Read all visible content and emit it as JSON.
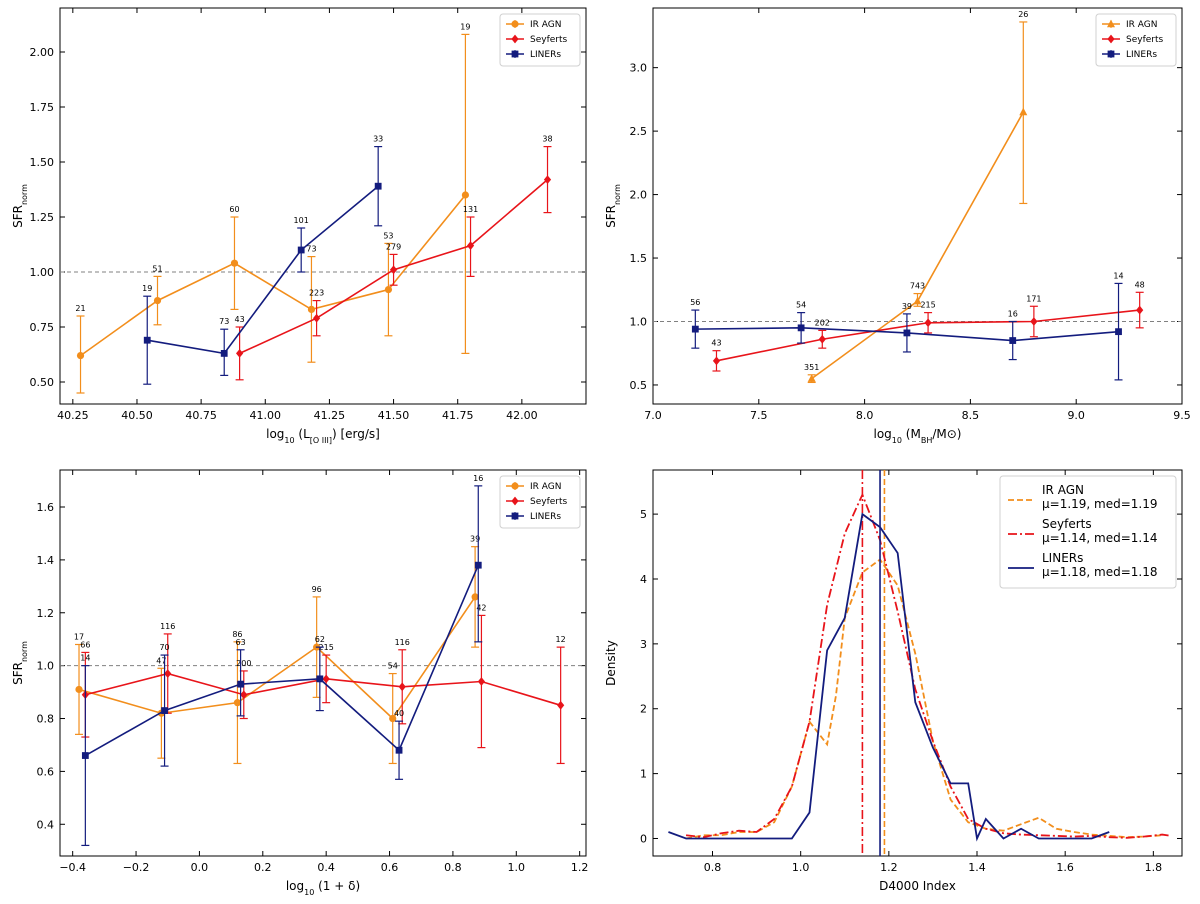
{
  "chart_data": [
    {
      "id": "p1",
      "type": "line",
      "xlabel": {
        "base": "log",
        "sub": "10",
        "rest": " (L",
        "lsub": "[O III]",
        "tail": ") [erg/s]"
      },
      "ylabel": {
        "base": "SFR",
        "sub": "norm"
      },
      "xlim": [
        40.2,
        42.25
      ],
      "ylim": [
        0.4,
        2.2
      ],
      "xticks": [
        "40.25",
        "40.50",
        "40.75",
        "41.00",
        "41.25",
        "41.50",
        "41.75",
        "42.00"
      ],
      "yticks": [
        "0.50",
        "0.75",
        "1.00",
        "1.25",
        "1.50",
        "1.75",
        "2.00"
      ],
      "xtick_values": [
        40.25,
        40.5,
        40.75,
        41.0,
        41.25,
        41.5,
        41.75,
        42.0
      ],
      "ytick_values": [
        0.5,
        0.75,
        1.0,
        1.25,
        1.5,
        1.75,
        2.0
      ],
      "reference_line": 1.0,
      "legend": {
        "position": "top-right",
        "entries": [
          "IR AGN",
          "Seyferts",
          "LINERs"
        ]
      },
      "series": [
        {
          "name": "IR AGN",
          "color": "#f28e1c",
          "marker": "circle",
          "x": [
            40.28,
            40.58,
            40.88,
            41.18,
            41.48,
            41.78
          ],
          "y": [
            0.62,
            0.87,
            1.04,
            0.83,
            0.92,
            1.35
          ],
          "err_lo": [
            0.45,
            0.76,
            0.83,
            0.59,
            0.71,
            0.63
          ],
          "err_hi": [
            0.8,
            0.98,
            1.25,
            1.07,
            1.13,
            2.08
          ],
          "labels": [
            "21",
            "51",
            "60",
            "73",
            "53",
            "19"
          ]
        },
        {
          "name": "Seyferts",
          "color": "#e8141a",
          "marker": "diamond",
          "x": [
            40.9,
            41.2,
            41.5,
            41.8,
            42.1
          ],
          "y": [
            0.63,
            0.79,
            1.01,
            1.12,
            1.42
          ],
          "err_lo": [
            0.51,
            0.71,
            0.94,
            0.98,
            1.27
          ],
          "err_hi": [
            0.75,
            0.87,
            1.08,
            1.25,
            1.57
          ],
          "labels": [
            "43",
            "223",
            "279",
            "131",
            "38"
          ]
        },
        {
          "name": "LINERs",
          "color": "#131c7e",
          "marker": "square",
          "x": [
            40.54,
            40.84,
            41.14,
            41.44
          ],
          "y": [
            0.69,
            0.63,
            1.1,
            1.39
          ],
          "err_lo": [
            0.49,
            0.53,
            1.0,
            1.21
          ],
          "err_hi": [
            0.89,
            0.74,
            1.2,
            1.57
          ],
          "labels": [
            "19",
            "73",
            "101",
            "33"
          ]
        }
      ]
    },
    {
      "id": "p2",
      "type": "line",
      "xlabel": {
        "base": "log",
        "sub": "10",
        "rest": " (M",
        "lsub": "BH",
        "tail": "/M⊙)"
      },
      "ylabel": {
        "base": "SFR",
        "sub": "norm"
      },
      "xlim": [
        7.0,
        9.5
      ],
      "ylim": [
        0.35,
        3.47
      ],
      "xticks": [
        "7.0",
        "7.5",
        "8.0",
        "8.5",
        "9.0",
        "9.5"
      ],
      "yticks": [
        "0.5",
        "1.0",
        "1.5",
        "2.0",
        "2.5",
        "3.0"
      ],
      "xtick_values": [
        7.0,
        7.5,
        8.0,
        8.5,
        9.0,
        9.5
      ],
      "ytick_values": [
        0.5,
        1.0,
        1.5,
        2.0,
        2.5,
        3.0
      ],
      "reference_line": 1.0,
      "legend": {
        "position": "top-right",
        "entries": [
          "IR AGN",
          "Seyferts",
          "LINERs"
        ]
      },
      "series": [
        {
          "name": "IR AGN",
          "color": "#f28e1c",
          "marker": "triangle",
          "x": [
            7.75,
            8.25,
            8.75
          ],
          "y": [
            0.55,
            1.16,
            2.65
          ],
          "err_lo": [
            0.52,
            1.12,
            1.93
          ],
          "err_hi": [
            0.58,
            1.22,
            3.36
          ],
          "labels": [
            "351",
            "743",
            "26"
          ]
        },
        {
          "name": "Seyferts",
          "color": "#e8141a",
          "marker": "diamond",
          "x": [
            7.3,
            7.8,
            8.3,
            8.8,
            9.3
          ],
          "y": [
            0.69,
            0.86,
            0.99,
            1.0,
            1.09
          ],
          "err_lo": [
            0.61,
            0.79,
            0.91,
            0.88,
            0.95
          ],
          "err_hi": [
            0.77,
            0.93,
            1.07,
            1.12,
            1.23
          ],
          "labels": [
            "43",
            "202",
            "215",
            "171",
            "48"
          ]
        },
        {
          "name": "LINERs",
          "color": "#131c7e",
          "marker": "square",
          "x": [
            7.2,
            7.7,
            8.2,
            8.7,
            9.2
          ],
          "y": [
            0.94,
            0.95,
            0.91,
            0.85,
            0.92
          ],
          "err_lo": [
            0.79,
            0.83,
            0.76,
            0.7,
            0.54
          ],
          "err_hi": [
            1.09,
            1.07,
            1.06,
            1.0,
            1.3
          ],
          "labels": [
            "56",
            "54",
            "39",
            "16",
            "14"
          ]
        }
      ]
    },
    {
      "id": "p3",
      "type": "line",
      "xlabel": {
        "base": "log",
        "sub": "10",
        "rest": " (1 + δ)",
        "lsub": "",
        "tail": ""
      },
      "ylabel": {
        "base": "SFR",
        "sub": "norm"
      },
      "xlim": [
        -0.44,
        1.22
      ],
      "ylim": [
        0.28,
        1.74
      ],
      "xticks": [
        "−0.4",
        "−0.2",
        "0.0",
        "0.2",
        "0.4",
        "0.6",
        "0.8",
        "1.0",
        "1.2"
      ],
      "yticks": [
        "0.4",
        "0.6",
        "0.8",
        "1.0",
        "1.2",
        "1.4",
        "1.6"
      ],
      "xtick_values": [
        -0.4,
        -0.2,
        0.0,
        0.2,
        0.4,
        0.6,
        0.8,
        1.0,
        1.2
      ],
      "ytick_values": [
        0.4,
        0.6,
        0.8,
        1.0,
        1.2,
        1.4,
        1.6
      ],
      "reference_line": 1.0,
      "legend": {
        "position": "top-right",
        "entries": [
          "IR AGN",
          "Seyferts",
          "LINERs"
        ]
      },
      "series": [
        {
          "name": "IR AGN",
          "color": "#f28e1c",
          "marker": "circle",
          "x": [
            -0.38,
            -0.12,
            0.12,
            0.37,
            0.61,
            0.87
          ],
          "y": [
            0.91,
            0.82,
            0.86,
            1.07,
            0.8,
            1.26
          ],
          "err_lo": [
            0.74,
            0.65,
            0.63,
            0.88,
            0.63,
            1.07
          ],
          "err_hi": [
            1.08,
            0.99,
            1.09,
            1.26,
            0.97,
            1.45
          ],
          "labels": [
            "17",
            "47",
            "86",
            "96",
            "54",
            "39"
          ]
        },
        {
          "name": "Seyferts",
          "color": "#e8141a",
          "marker": "diamond",
          "x": [
            -0.36,
            -0.1,
            0.14,
            0.4,
            0.64,
            0.89,
            1.14
          ],
          "y": [
            0.89,
            0.97,
            0.89,
            0.95,
            0.92,
            0.94,
            0.85
          ],
          "err_lo": [
            0.73,
            0.82,
            0.8,
            0.86,
            0.78,
            0.69,
            0.63
          ],
          "err_hi": [
            1.05,
            1.12,
            0.98,
            1.04,
            1.06,
            1.19,
            1.07
          ],
          "labels": [
            "66",
            "116",
            "200",
            "215",
            "116",
            "42",
            "12"
          ]
        },
        {
          "name": "LINERs",
          "color": "#131c7e",
          "marker": "square",
          "x": [
            -0.36,
            -0.11,
            0.13,
            0.38,
            0.63,
            0.88
          ],
          "y": [
            0.66,
            0.83,
            0.93,
            0.95,
            0.68,
            1.38
          ],
          "err_lo": [
            0.32,
            0.62,
            0.81,
            0.83,
            0.57,
            1.09
          ],
          "err_hi": [
            1.0,
            1.04,
            1.06,
            1.07,
            0.79,
            1.68
          ],
          "labels": [
            "14",
            "70",
            "63",
            "62",
            "40",
            "16"
          ]
        }
      ]
    },
    {
      "id": "p4",
      "type": "line",
      "xlabel": {
        "base": "D4000 Index",
        "sub": "",
        "rest": "",
        "lsub": "",
        "tail": ""
      },
      "ylabel": {
        "base": "Density",
        "sub": ""
      },
      "xlim": [
        0.665,
        1.865
      ],
      "ylim": [
        -0.27,
        5.68
      ],
      "xticks": [
        "0.8",
        "1.0",
        "1.2",
        "1.4",
        "1.6",
        "1.8"
      ],
      "yticks": [
        "0",
        "1",
        "2",
        "3",
        "4",
        "5"
      ],
      "xtick_values": [
        0.8,
        1.0,
        1.2,
        1.4,
        1.6,
        1.8
      ],
      "ytick_values": [
        0,
        1,
        2,
        3,
        4,
        5
      ],
      "legend": {
        "position": "top-right",
        "entries": [
          "IR AGN",
          "Seyferts",
          "LINERs"
        ]
      },
      "series": [
        {
          "name": "IR AGN",
          "stats": "μ=1.19, med=1.19",
          "color": "#f28e1c",
          "dash": "6,3",
          "mean": 1.19,
          "x": [
            0.74,
            0.78,
            0.82,
            0.86,
            0.9,
            0.94,
            0.98,
            1.02,
            1.06,
            1.08,
            1.1,
            1.14,
            1.18,
            1.22,
            1.26,
            1.3,
            1.34,
            1.38,
            1.42,
            1.46,
            1.5,
            1.54,
            1.58,
            1.62,
            1.66,
            1.7,
            1.74,
            1.78,
            1.82
          ],
          "y": [
            0.0,
            0.05,
            0.05,
            0.1,
            0.1,
            0.25,
            0.8,
            1.8,
            1.45,
            2.2,
            3.4,
            4.1,
            4.3,
            3.9,
            2.85,
            1.5,
            0.6,
            0.25,
            0.15,
            0.12,
            0.22,
            0.32,
            0.15,
            0.1,
            0.06,
            0.04,
            0.02,
            0.03,
            0.05
          ]
        },
        {
          "name": "Seyferts",
          "stats": "μ=1.14, med=1.14",
          "color": "#e8141a",
          "dash": "9,3,2,3",
          "mean": 1.14,
          "x": [
            0.74,
            0.78,
            0.82,
            0.86,
            0.9,
            0.94,
            0.98,
            1.02,
            1.06,
            1.1,
            1.14,
            1.18,
            1.22,
            1.26,
            1.3,
            1.34,
            1.38,
            1.42,
            1.46,
            1.5,
            1.54,
            1.58,
            1.62,
            1.66,
            1.7,
            1.74,
            1.78,
            1.82,
            1.84
          ],
          "y": [
            0.05,
            0.02,
            0.08,
            0.12,
            0.1,
            0.3,
            0.8,
            1.8,
            3.6,
            4.7,
            5.3,
            4.6,
            3.5,
            2.3,
            1.5,
            0.8,
            0.3,
            0.15,
            0.08,
            0.06,
            0.05,
            0.04,
            0.03,
            0.04,
            0.02,
            0.01,
            0.03,
            0.06,
            0.04
          ]
        },
        {
          "name": "LINERs",
          "stats": "μ=1.18, med=1.18",
          "color": "#131c7e",
          "dash": "",
          "mean": 1.18,
          "x": [
            0.7,
            0.74,
            0.82,
            0.9,
            0.98,
            1.02,
            1.06,
            1.1,
            1.14,
            1.18,
            1.22,
            1.26,
            1.3,
            1.34,
            1.38,
            1.4,
            1.42,
            1.46,
            1.5,
            1.54,
            1.58,
            1.62,
            1.66,
            1.7
          ],
          "y": [
            0.1,
            0.0,
            0.0,
            0.0,
            0.0,
            0.4,
            2.9,
            3.4,
            5.0,
            4.8,
            4.4,
            2.1,
            1.4,
            0.85,
            0.85,
            0.0,
            0.3,
            0.0,
            0.15,
            0.0,
            0.0,
            0.0,
            0.0,
            0.1
          ]
        }
      ]
    }
  ]
}
